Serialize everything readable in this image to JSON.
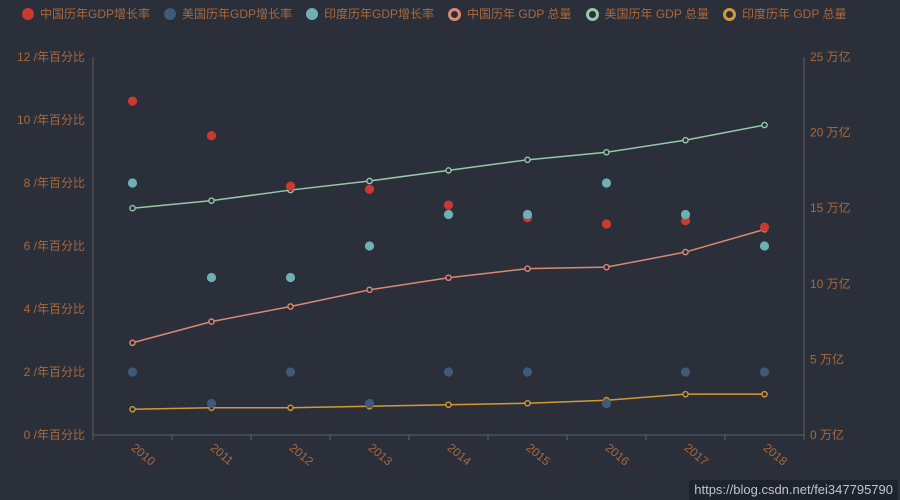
{
  "watermark": "https://blog.csdn.net/fei347795790",
  "colors": {
    "background": "#2a2f39",
    "text": "#a9693f",
    "axis_line": "#5c6168",
    "watermark_text": "#bfc5cc",
    "watermark_bg": "rgba(12,14,19,0.35)"
  },
  "chart_data": {
    "type": "mixed",
    "x": [
      "2010",
      "2011",
      "2012",
      "2013",
      "2014",
      "2015",
      "2016",
      "2017",
      "2018"
    ],
    "left_axis": {
      "min": 0,
      "max": 12,
      "step": 2,
      "label_suffix": " /年百分比"
    },
    "right_axis": {
      "min": 0,
      "max": 25,
      "step": 5,
      "label_suffix": " 万亿"
    },
    "legend_position": "top-left",
    "grid": false,
    "series": [
      {
        "name": "中国历年GDP增长率",
        "type": "scatter",
        "axis": "left",
        "color": "#cb3a31",
        "values": [
          10.6,
          9.5,
          7.9,
          7.8,
          7.3,
          6.9,
          6.7,
          6.8,
          6.6
        ]
      },
      {
        "name": "美国历年GDP增长率",
        "type": "scatter",
        "axis": "left",
        "color": "#3f5a78",
        "values": [
          2.0,
          1.0,
          2.0,
          1.0,
          2.0,
          2.0,
          1.0,
          2.0,
          2.0
        ]
      },
      {
        "name": "印度历年GDP增长率",
        "type": "scatter",
        "axis": "left",
        "color": "#6fb0b7",
        "values": [
          8.0,
          5.0,
          5.0,
          6.0,
          7.0,
          7.0,
          8.0,
          7.0,
          6.0
        ]
      },
      {
        "name": "中国历年 GDP 总量",
        "type": "line",
        "axis": "right",
        "color": "#dd8873",
        "values": [
          6.1,
          7.5,
          8.5,
          9.6,
          10.4,
          11.0,
          11.1,
          12.1,
          13.6
        ]
      },
      {
        "name": "美国历年 GDP 总量",
        "type": "line",
        "axis": "right",
        "color": "#94c9a9",
        "values": [
          15.0,
          15.5,
          16.2,
          16.8,
          17.5,
          18.2,
          18.7,
          19.5,
          20.5
        ]
      },
      {
        "name": "印度历年 GDP 总量",
        "type": "line",
        "axis": "right",
        "color": "#d29a35",
        "values": [
          1.7,
          1.8,
          1.8,
          1.9,
          2.0,
          2.1,
          2.3,
          2.7,
          2.7
        ]
      }
    ]
  }
}
